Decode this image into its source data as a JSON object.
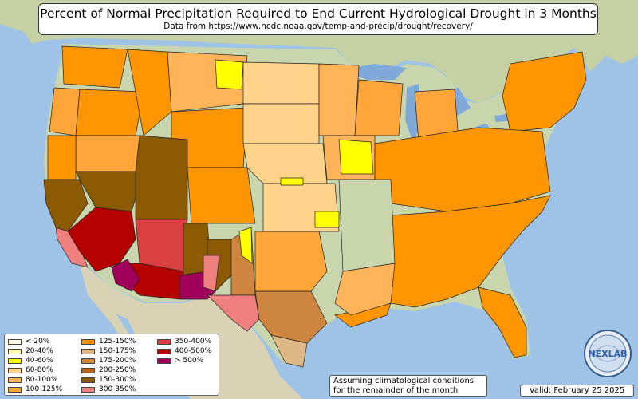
{
  "title": "Percent of Normal Precipitation Required to End Current Hydrological Drought in 3 Months",
  "subtitle": "Data from https://www.ncdc.noaa.gov/temp-and-precip/drought/recovery/",
  "legend": [
    {
      "label": "< 20%",
      "color": "#ffffe0"
    },
    {
      "label": "20-40%",
      "color": "#ffffb0"
    },
    {
      "label": "40-60%",
      "color": "#ffff00"
    },
    {
      "label": "60-80%",
      "color": "#ffd38a"
    },
    {
      "label": "80-100%",
      "color": "#ffb45a"
    },
    {
      "label": "100-125%",
      "color": "#ffa53a"
    },
    {
      "label": "125-150%",
      "color": "#ff9500"
    },
    {
      "label": "150-175%",
      "color": "#deb887"
    },
    {
      "label": "175-200%",
      "color": "#cd853f"
    },
    {
      "label": "200-250%",
      "color": "#b5651d"
    },
    {
      "label": "150-300%",
      "color": "#8b5a00"
    },
    {
      "label": "300-350%",
      "color": "#f08080"
    },
    {
      "label": "350-400%",
      "color": "#d94040"
    },
    {
      "label": "400-500%",
      "color": "#b50000"
    },
    {
      "label": "> 500%",
      "color": "#a0005a"
    }
  ],
  "note_line1": "Assuming climatological conditions",
  "note_line2": "for the remainder of the month",
  "valid_text": "Valid: February 25 2025",
  "logo_text": "NEXLAB",
  "colors": {
    "ocean": "#9ec3e6",
    "land": "#c9d6ad",
    "dry_land": "#e6dfc4",
    "border": "#111111"
  }
}
